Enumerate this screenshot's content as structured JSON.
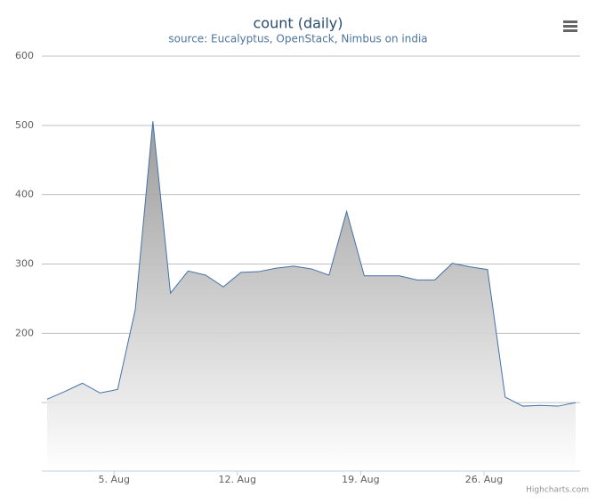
{
  "chart_data": {
    "type": "area",
    "title": "count (daily)",
    "subtitle": "source: Eucalyptus, OpenStack, Nimbus on india",
    "categories": [
      null,
      null,
      null,
      null,
      "5. Aug",
      null,
      null,
      null,
      null,
      null,
      null,
      "12. Aug",
      null,
      null,
      null,
      null,
      null,
      null,
      "19. Aug",
      null,
      null,
      null,
      null,
      null,
      null,
      "26. Aug",
      null,
      null,
      null,
      null,
      null
    ],
    "values": [
      105,
      116,
      128,
      114,
      119,
      234,
      506,
      258,
      290,
      284,
      267,
      288,
      289,
      294,
      297,
      293,
      284,
      376,
      283,
      283,
      283,
      277,
      277,
      301,
      296,
      292,
      108,
      95,
      96,
      95,
      100
    ],
    "color": "#4572a7",
    "ylim": [
      0,
      600
    ],
    "yticks": [
      200,
      300,
      400,
      500,
      600
    ],
    "ygrid_extra": [
      100
    ],
    "grid": true,
    "credits": "Highcharts.com"
  }
}
